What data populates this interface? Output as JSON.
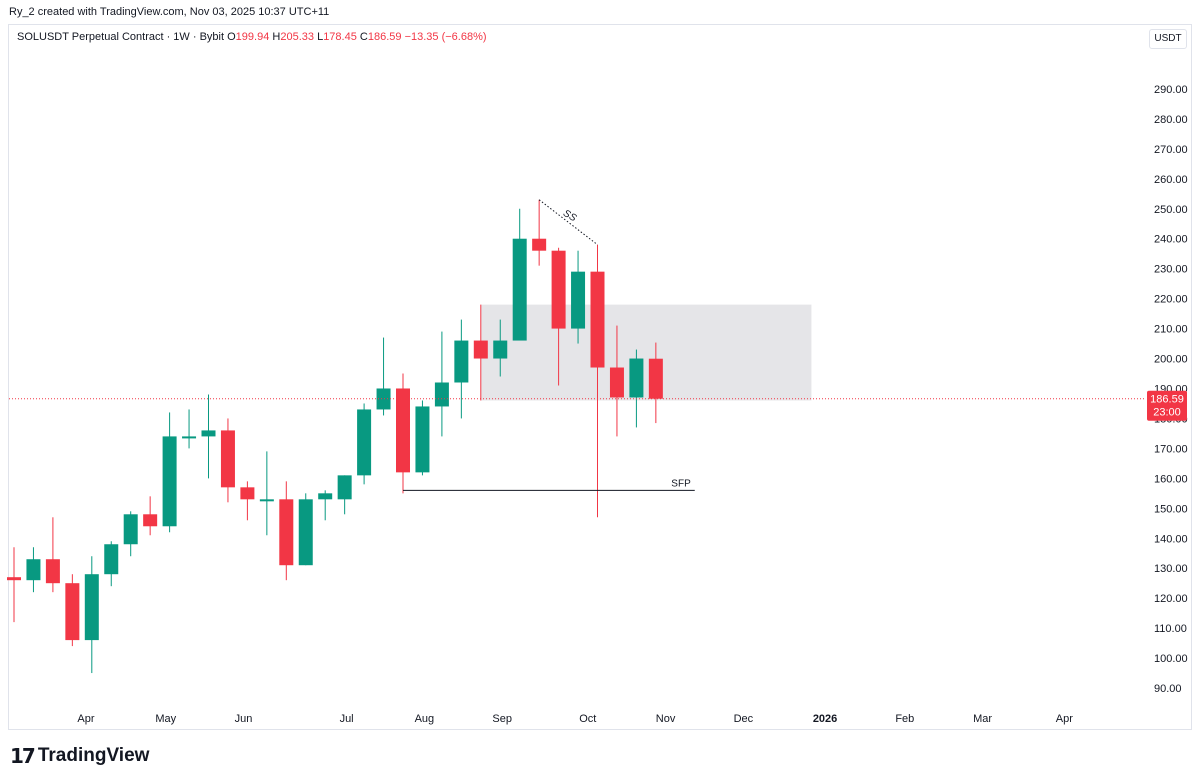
{
  "header": {
    "credit": "Ry_2 created with TradingView.com, Nov 03, 2025 10:37 UTC+11"
  },
  "legend": {
    "symbol": "SOLUSDT Perpetual Contract · 1W · Bybit",
    "o_label": "O",
    "o_value": "199.94",
    "h_label": "H",
    "h_value": "205.33",
    "l_label": "L",
    "l_value": "178.45",
    "c_label": "C",
    "c_value": "186.59",
    "change": "−13.35 (−6.68%)"
  },
  "currency": "USDT",
  "footer": {
    "logo_text": "TradingView",
    "logo_mark": "17"
  },
  "colors": {
    "up": "#089981",
    "down": "#f23645",
    "zone": "#e0e1e4",
    "line": "#131722"
  },
  "chart_data": {
    "type": "candlestick",
    "title": "SOLUSDT Perpetual Contract · 1W · Bybit",
    "ylabel": "USDT",
    "ylim": [
      84,
      303
    ],
    "y_ticks": [
      "90.00",
      "100.00",
      "110.00",
      "120.00",
      "130.00",
      "140.00",
      "150.00",
      "160.00",
      "170.00",
      "180.00",
      "190.00",
      "200.00",
      "210.00",
      "220.00",
      "230.00",
      "240.00",
      "250.00",
      "260.00",
      "270.00",
      "280.00",
      "290.00"
    ],
    "x_labels": [
      {
        "label": "Apr",
        "week": 3.7
      },
      {
        "label": "May",
        "week": 7.8
      },
      {
        "label": "Jun",
        "week": 11.8
      },
      {
        "label": "Jul",
        "week": 17.1
      },
      {
        "label": "Aug",
        "week": 21.1
      },
      {
        "label": "Sep",
        "week": 25.1
      },
      {
        "label": "Oct",
        "week": 29.5
      },
      {
        "label": "Nov",
        "week": 33.5
      },
      {
        "label": "Dec",
        "week": 37.5
      },
      {
        "label": "2026",
        "week": 41.7
      },
      {
        "label": "Feb",
        "week": 45.8
      },
      {
        "label": "Mar",
        "week": 49.8
      },
      {
        "label": "Apr",
        "week": 54.0
      }
    ],
    "candles": [
      {
        "o": 127,
        "h": 137,
        "l": 112,
        "c": 126
      },
      {
        "o": 126,
        "h": 137,
        "l": 122,
        "c": 133
      },
      {
        "o": 133,
        "h": 147,
        "l": 122,
        "c": 125
      },
      {
        "o": 125,
        "h": 128,
        "l": 104,
        "c": 106
      },
      {
        "o": 106,
        "h": 134,
        "l": 95,
        "c": 128
      },
      {
        "o": 128,
        "h": 139,
        "l": 124,
        "c": 138
      },
      {
        "o": 138,
        "h": 149,
        "l": 134,
        "c": 148
      },
      {
        "o": 148,
        "h": 154,
        "l": 141,
        "c": 144
      },
      {
        "o": 144,
        "h": 182,
        "l": 142,
        "c": 174
      },
      {
        "o": 174,
        "h": 183,
        "l": 170,
        "c": 174
      },
      {
        "o": 174,
        "h": 188,
        "l": 160,
        "c": 176
      },
      {
        "o": 176,
        "h": 180,
        "l": 152,
        "c": 157
      },
      {
        "o": 157,
        "h": 159,
        "l": 146,
        "c": 153
      },
      {
        "o": 153,
        "h": 169,
        "l": 141,
        "c": 153
      },
      {
        "o": 153,
        "h": 159,
        "l": 126,
        "c": 131
      },
      {
        "o": 131,
        "h": 155,
        "l": 131,
        "c": 153
      },
      {
        "o": 153,
        "h": 156,
        "l": 146,
        "c": 155
      },
      {
        "o": 153,
        "h": 161,
        "l": 148,
        "c": 161
      },
      {
        "o": 161,
        "h": 185,
        "l": 158,
        "c": 183
      },
      {
        "o": 183,
        "h": 207,
        "l": 181,
        "c": 190
      },
      {
        "o": 190,
        "h": 195,
        "l": 155,
        "c": 162
      },
      {
        "o": 162,
        "h": 186,
        "l": 161,
        "c": 184
      },
      {
        "o": 184,
        "h": 209,
        "l": 174,
        "c": 192
      },
      {
        "o": 192,
        "h": 213,
        "l": 180,
        "c": 206
      },
      {
        "o": 206,
        "h": 218,
        "l": 186,
        "c": 200
      },
      {
        "o": 200,
        "h": 213,
        "l": 194,
        "c": 206
      },
      {
        "o": 206,
        "h": 250,
        "l": 206,
        "c": 240
      },
      {
        "o": 240,
        "h": 253,
        "l": 231,
        "c": 236
      },
      {
        "o": 236,
        "h": 237,
        "l": 191,
        "c": 210
      },
      {
        "o": 210,
        "h": 236,
        "l": 205,
        "c": 229
      },
      {
        "o": 229,
        "h": 238,
        "l": 147,
        "c": 197
      },
      {
        "o": 197,
        "h": 211,
        "l": 174,
        "c": 187
      },
      {
        "o": 187,
        "h": 203,
        "l": 177,
        "c": 200
      },
      {
        "o": 199.94,
        "h": 205.33,
        "l": 178.45,
        "c": 186.59
      }
    ],
    "zone": {
      "from_week": 24,
      "to_week": 41,
      "y_low": 186,
      "y_high": 218
    },
    "current_price": {
      "value": 186.59,
      "label": "186.59",
      "countdown": "23:00"
    },
    "annotations": [
      {
        "type": "hline",
        "text": "SFP",
        "from_week": 20,
        "to_week": 35,
        "y": 156
      },
      {
        "type": "dotted",
        "text": "SS",
        "from_week": 27,
        "y1": 253,
        "to_week": 30,
        "y2": 238
      }
    ]
  }
}
